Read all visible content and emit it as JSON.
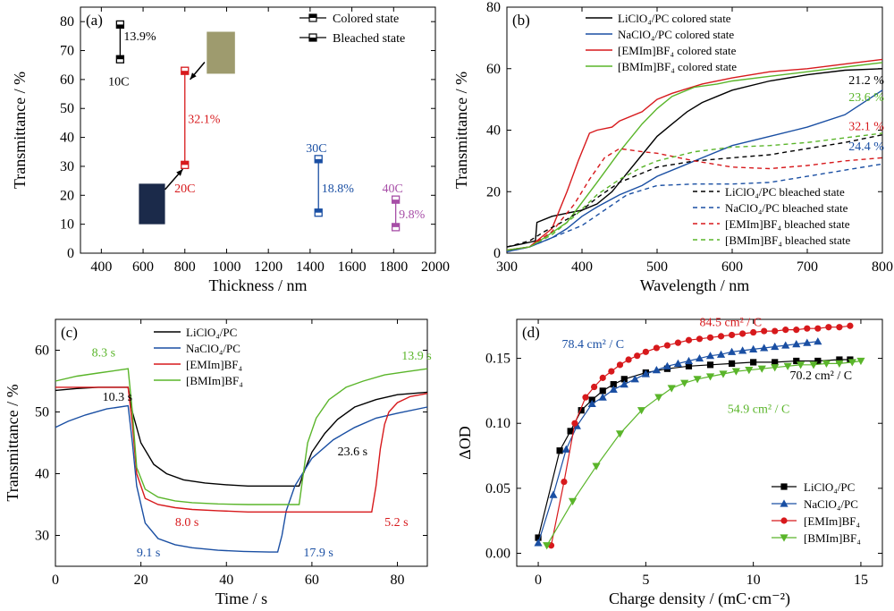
{
  "chart_data": [
    {
      "panel": "(a)",
      "type": "scatter",
      "xlabel": "Thickness / nm",
      "ylabel": "Transmittance / %",
      "xlim": [
        300,
        2000
      ],
      "ylim": [
        0,
        85
      ],
      "xticks": [
        400,
        600,
        800,
        1000,
        1200,
        1400,
        1600,
        1800,
        2000
      ],
      "yticks": [
        0,
        10,
        20,
        30,
        40,
        50,
        60,
        70,
        80
      ],
      "legend": [
        "Colored state",
        "Bleached state"
      ],
      "legend_position": "top-right",
      "samples": [
        {
          "label": "10C",
          "thickness": 490,
          "colored": 67,
          "bleached": 79,
          "delta": "13.9%",
          "color": "#000000"
        },
        {
          "label": "20C",
          "thickness": 800,
          "colored": 30.5,
          "bleached": 63,
          "delta": "32.1%",
          "color": "#d7191c"
        },
        {
          "label": "30C",
          "thickness": 1440,
          "colored": 14,
          "bleached": 32.5,
          "delta": "18.8%",
          "color": "#1a4fa3"
        },
        {
          "label": "40C",
          "thickness": 1810,
          "colored": 9,
          "bleached": 18.5,
          "delta": "9.8%",
          "color": "#a74ea7"
        }
      ],
      "swatches": {
        "colored": "#1b2a4a",
        "bleached": "#9e9b6e"
      }
    },
    {
      "panel": "(b)",
      "type": "line",
      "xlabel": "Wavelength / nm",
      "ylabel": "Transmittance / %",
      "xlim": [
        300,
        800
      ],
      "ylim": [
        0,
        80
      ],
      "xticks": [
        300,
        400,
        500,
        600,
        700,
        800
      ],
      "yticks": [
        0,
        20,
        40,
        60,
        80
      ],
      "series": [
        {
          "name": "LiClO₄/PC colored state",
          "color": "#000000",
          "dash": false,
          "x": [
            300,
            320,
            338,
            340,
            360,
            380,
            400,
            420,
            440,
            460,
            480,
            500,
            520,
            540,
            560,
            580,
            600,
            650,
            700,
            750,
            800
          ],
          "y": [
            2,
            3,
            4,
            10,
            12,
            13,
            14,
            16,
            20,
            26,
            32,
            38,
            42,
            46,
            49,
            51,
            53,
            56,
            58,
            59.5,
            60
          ]
        },
        {
          "name": "NaClO₄/PC colored state",
          "color": "#1a4fa3",
          "dash": false,
          "x": [
            300,
            330,
            360,
            380,
            400,
            420,
            450,
            480,
            500,
            530,
            560,
            600,
            650,
            700,
            750,
            800
          ],
          "y": [
            0.5,
            2,
            5,
            8,
            12,
            15,
            19,
            22,
            25,
            28,
            31,
            35,
            38,
            41,
            45,
            53
          ]
        },
        {
          "name": "[EMIm]BF₄ colored state",
          "color": "#d7191c",
          "dash": false,
          "x": [
            300,
            330,
            360,
            380,
            395,
            410,
            420,
            440,
            450,
            480,
            500,
            520,
            560,
            600,
            650,
            700,
            750,
            800
          ],
          "y": [
            1,
            2,
            8,
            20,
            30,
            39,
            40,
            41,
            43,
            46,
            50,
            52,
            55,
            57,
            59,
            60,
            61.5,
            63
          ]
        },
        {
          "name": "[BMIm]BF₄ colored state",
          "color": "#5ab52a",
          "dash": false,
          "x": [
            300,
            330,
            350,
            380,
            420,
            450,
            480,
            500,
            520,
            550,
            580,
            600,
            650,
            700,
            750,
            800
          ],
          "y": [
            1,
            2,
            5,
            10,
            23,
            33,
            42,
            47,
            51,
            54,
            55,
            56,
            57.5,
            59,
            60.5,
            62
          ]
        },
        {
          "name": "LiClO₄/PC bleached state",
          "color": "#000000",
          "dash": true,
          "x": [
            300,
            330,
            350,
            380,
            400,
            420,
            450,
            480,
            500,
            550,
            600,
            650,
            700,
            750,
            800
          ],
          "y": [
            2,
            4,
            7,
            11,
            14,
            18,
            23,
            26,
            28,
            30,
            31,
            32,
            34,
            36,
            38.5
          ]
        },
        {
          "name": "NaClO₄/PC bleached state",
          "color": "#1a4fa3",
          "dash": true,
          "x": [
            300,
            330,
            360,
            400,
            430,
            460,
            500,
            550,
            600,
            650,
            700,
            750,
            800
          ],
          "y": [
            0.5,
            2,
            5,
            9,
            14,
            19,
            22,
            22.5,
            22.5,
            23,
            25,
            27,
            29
          ]
        },
        {
          "name": "[EMIm]BF₄ bleached state",
          "color": "#d7191c",
          "dash": true,
          "x": [
            300,
            330,
            360,
            390,
            410,
            430,
            450,
            480,
            500,
            550,
            600,
            650,
            700,
            750,
            800
          ],
          "y": [
            1,
            2,
            7,
            16,
            24,
            31,
            34,
            33,
            32.5,
            30,
            28,
            27.5,
            28.5,
            30,
            31
          ]
        },
        {
          "name": "[BMIm]BF₄ bleached state",
          "color": "#5ab52a",
          "dash": true,
          "x": [
            300,
            330,
            360,
            390,
            420,
            450,
            480,
            500,
            550,
            600,
            650,
            700,
            750,
            800
          ],
          "y": [
            1,
            2,
            6,
            12,
            19,
            24,
            28,
            30,
            33,
            34.5,
            35,
            36,
            37.5,
            39
          ]
        }
      ],
      "annotations": [
        {
          "text": "21.2 %",
          "x": 755,
          "y": 55,
          "color": "#000000"
        },
        {
          "text": "23.6 %",
          "x": 755,
          "y": 49.5,
          "color": "#5ab52a"
        },
        {
          "text": "32.1 %",
          "x": 755,
          "y": 40,
          "color": "#d7191c"
        },
        {
          "text": "24.4 %",
          "x": 755,
          "y": 33.5,
          "color": "#1a4fa3"
        }
      ]
    },
    {
      "panel": "(c)",
      "type": "line",
      "xlabel": "Time / s",
      "ylabel": "Transmittance / %",
      "xlim": [
        0,
        87
      ],
      "ylim": [
        25,
        65
      ],
      "xticks": [
        0,
        20,
        40,
        60,
        80
      ],
      "yticks": [
        30,
        40,
        50,
        60
      ],
      "series": [
        {
          "name": "LiClO₄/PC",
          "color": "#000000",
          "x": [
            0,
            5,
            10,
            15,
            17,
            18,
            20,
            23,
            26,
            30,
            35,
            40,
            45,
            50,
            55,
            57,
            58,
            60,
            63,
            66,
            70,
            75,
            80,
            87
          ],
          "y": [
            53.5,
            53.8,
            54,
            54,
            54,
            50,
            45,
            41.5,
            40,
            39,
            38.5,
            38.2,
            38,
            38,
            38,
            38,
            40,
            43.5,
            46.5,
            48.8,
            50.8,
            52,
            52.8,
            53.2
          ]
        },
        {
          "name": "NaClO₄/PC",
          "color": "#1a4fa3",
          "x": [
            0,
            3,
            7,
            12,
            17,
            18,
            19,
            21,
            24,
            28,
            32,
            38,
            44,
            50,
            52,
            53,
            54,
            56,
            60,
            65,
            70,
            75,
            80,
            87
          ],
          "y": [
            47.5,
            48.5,
            49.5,
            50.5,
            51,
            45,
            38,
            32,
            29.5,
            28.5,
            28,
            27.6,
            27.4,
            27.3,
            27.3,
            30,
            34,
            38,
            42.5,
            45.5,
            47.5,
            49,
            49.8,
            50.8
          ]
        },
        {
          "name": "[EMIm]BF₄",
          "color": "#d7191c",
          "x": [
            0,
            5,
            10,
            15,
            17,
            18,
            19,
            21,
            24,
            28,
            32,
            38,
            45,
            55,
            65,
            74,
            75,
            76,
            77,
            78,
            80,
            83,
            87
          ],
          "y": [
            54,
            54,
            54,
            54,
            54,
            48,
            40,
            36,
            35,
            34.5,
            34.2,
            34,
            33.8,
            33.8,
            33.8,
            33.8,
            38,
            44,
            48,
            50,
            51.5,
            52.5,
            53
          ]
        },
        {
          "name": "[BMIm]BF₄",
          "color": "#5ab52a",
          "x": [
            0,
            5,
            10,
            15,
            17,
            18,
            19,
            21,
            24,
            28,
            32,
            38,
            45,
            52,
            57,
            58,
            59,
            61,
            64,
            68,
            72,
            77,
            82,
            87
          ],
          "y": [
            55,
            55.8,
            56.3,
            56.8,
            57,
            50,
            41,
            37.5,
            36.2,
            35.6,
            35.3,
            35.1,
            35,
            35,
            35,
            40,
            45,
            49,
            52,
            54,
            55,
            56,
            56.5,
            57
          ]
        }
      ],
      "annotations": [
        {
          "text": "8.3 s",
          "x": 8.5,
          "y": 59,
          "color": "#5ab52a"
        },
        {
          "text": "10.3 s",
          "x": 11,
          "y": 51.8,
          "color": "#000000"
        },
        {
          "text": "8.0 s",
          "x": 28,
          "y": 31.5,
          "color": "#d7191c"
        },
        {
          "text": "9.1 s",
          "x": 19,
          "y": 26.6,
          "color": "#1a4fa3"
        },
        {
          "text": "13.9 s",
          "x": 81,
          "y": 58.5,
          "color": "#5ab52a"
        },
        {
          "text": "23.6 s",
          "x": 66,
          "y": 43,
          "color": "#000000"
        },
        {
          "text": "5.2 s",
          "x": 77,
          "y": 31.5,
          "color": "#d7191c"
        },
        {
          "text": "17.9 s",
          "x": 58,
          "y": 26.6,
          "color": "#1a4fa3"
        }
      ]
    },
    {
      "panel": "(d)",
      "type": "scatter",
      "xlabel": "Charge density / (mC·cm⁻²)",
      "ylabel": "ΔOD",
      "xlim": [
        -1,
        16
      ],
      "ylim": [
        -0.01,
        0.18
      ],
      "xticks": [
        0,
        5,
        10,
        15
      ],
      "yticks": [
        0,
        0.05,
        0.1,
        0.15
      ],
      "series": [
        {
          "name": "LiClO₄/PC",
          "color": "#000000",
          "marker": "square",
          "x": [
            0,
            1,
            1.5,
            2,
            2.5,
            3,
            3.5,
            4,
            5,
            6,
            7,
            8,
            9,
            10,
            11,
            12,
            13,
            14,
            14.5
          ],
          "y": [
            0.012,
            0.079,
            0.094,
            0.11,
            0.118,
            0.125,
            0.13,
            0.134,
            0.139,
            0.142,
            0.144,
            0.145,
            0.146,
            0.147,
            0.147,
            0.148,
            0.148,
            0.149,
            0.149
          ]
        },
        {
          "name": "NaClO₄/PC",
          "color": "#1a4fa3",
          "marker": "triangle-up",
          "x": [
            0,
            0.7,
            1.3,
            1.8,
            2.5,
            3,
            3.5,
            4,
            4.5,
            5,
            5.5,
            6,
            6.5,
            7,
            7.5,
            8,
            8.5,
            9,
            9.5,
            10,
            10.5,
            11,
            11.5,
            12,
            12.5,
            13
          ],
          "y": [
            0.008,
            0.045,
            0.08,
            0.098,
            0.115,
            0.12,
            0.126,
            0.13,
            0.134,
            0.138,
            0.141,
            0.144,
            0.146,
            0.148,
            0.15,
            0.152,
            0.153,
            0.155,
            0.156,
            0.157,
            0.158,
            0.159,
            0.16,
            0.161,
            0.162,
            0.163
          ]
        },
        {
          "name": "[EMIm]BF₄",
          "color": "#d7191c",
          "marker": "circle",
          "x": [
            0.6,
            1.2,
            1.7,
            2.2,
            2.6,
            3,
            3.4,
            3.8,
            4.2,
            4.6,
            5,
            5.5,
            6,
            6.5,
            7,
            7.5,
            8,
            8.5,
            9,
            9.5,
            10,
            10.5,
            11,
            11.5,
            12,
            12.5,
            13,
            13.5,
            14,
            14.5
          ],
          "y": [
            0.006,
            0.055,
            0.1,
            0.12,
            0.128,
            0.135,
            0.14,
            0.145,
            0.149,
            0.152,
            0.155,
            0.158,
            0.16,
            0.162,
            0.164,
            0.165,
            0.166,
            0.167,
            0.168,
            0.169,
            0.17,
            0.171,
            0.171,
            0.172,
            0.172,
            0.173,
            0.173,
            0.174,
            0.174,
            0.175
          ]
        },
        {
          "name": "[BMIm]BF₄",
          "color": "#5ab52a",
          "marker": "triangle-down",
          "x": [
            0.4,
            1.6,
            2.7,
            3.8,
            4.8,
            5.6,
            6.2,
            6.8,
            7.4,
            8,
            8.6,
            9.2,
            9.8,
            10.4,
            11,
            11.6,
            12.2,
            12.8,
            13.4,
            14,
            14.6,
            15
          ],
          "y": [
            0.006,
            0.04,
            0.067,
            0.092,
            0.11,
            0.12,
            0.127,
            0.131,
            0.134,
            0.136,
            0.138,
            0.14,
            0.141,
            0.142,
            0.143,
            0.144,
            0.145,
            0.145,
            0.146,
            0.146,
            0.147,
            0.148
          ]
        }
      ],
      "annotations": [
        {
          "text": "84.5 cm² / C",
          "x": 7.5,
          "y": 0.175,
          "color": "#d7191c"
        },
        {
          "text": "78.4 cm² / C",
          "x": 1.1,
          "y": 0.158,
          "color": "#1a4fa3"
        },
        {
          "text": "70.2 cm² / C",
          "x": 11.7,
          "y": 0.134,
          "color": "#000000"
        },
        {
          "text": "54.9 cm² / C",
          "x": 8.8,
          "y": 0.108,
          "color": "#5ab52a"
        }
      ]
    }
  ]
}
